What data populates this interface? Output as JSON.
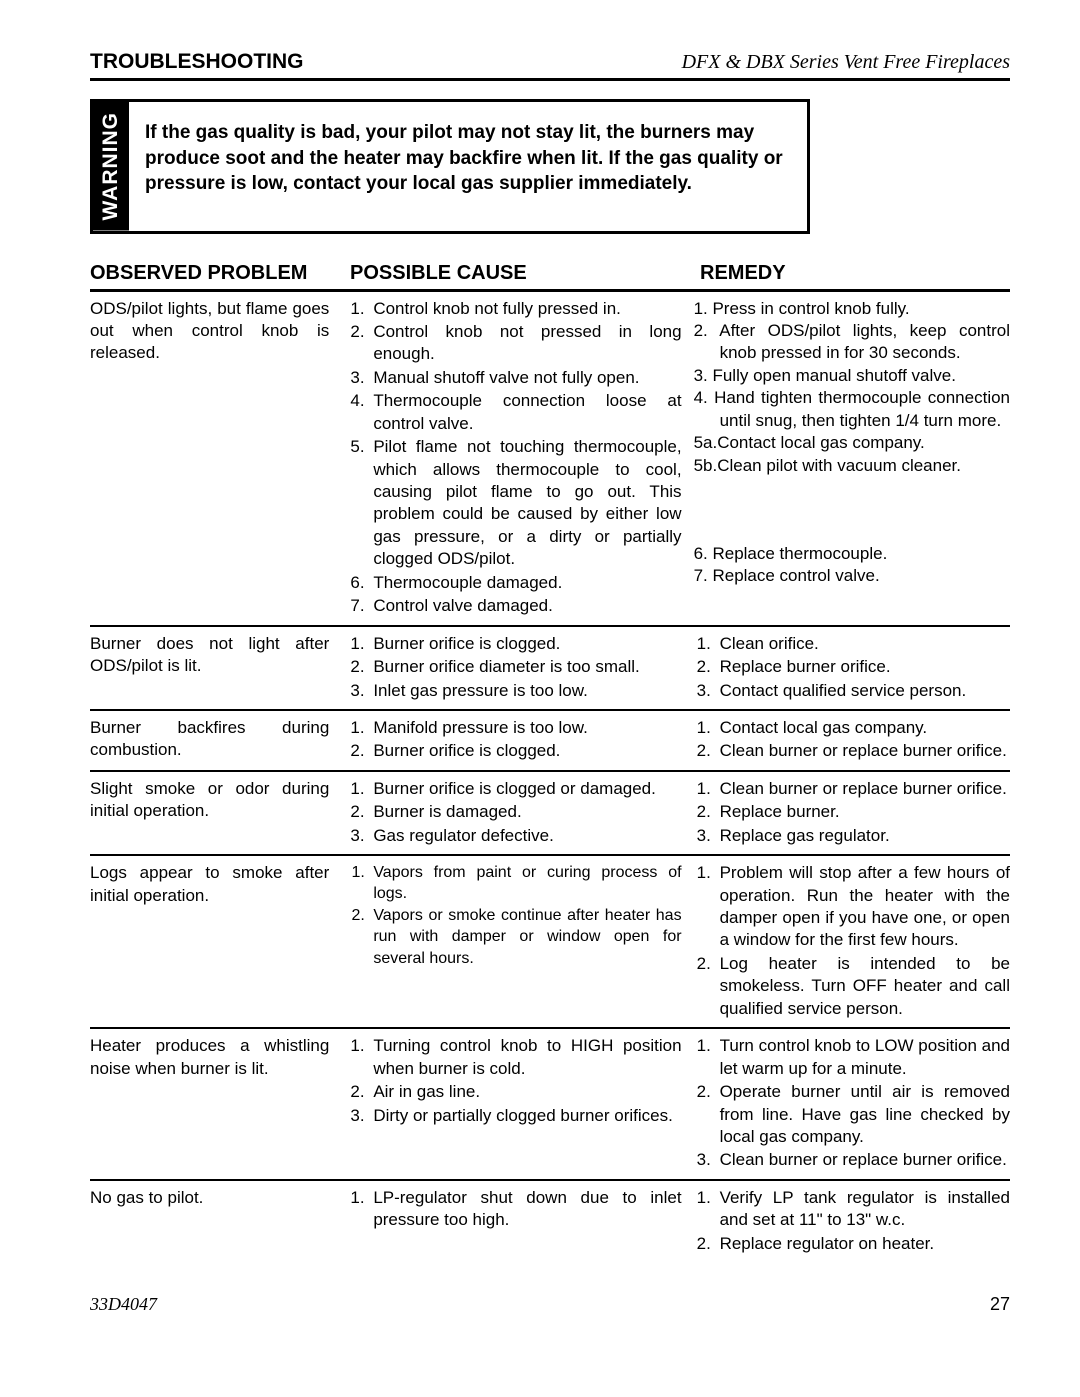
{
  "header": {
    "section": "TROUBLESHOOTING",
    "series": "DFX & DBX Series Vent Free Fireplaces"
  },
  "warning": {
    "label": "WARNING",
    "text": "If the gas quality is bad, your pilot may not stay lit, the burners may produce soot and the heater may backfire when lit. If the gas quality or pressure is low, contact your local gas supplier immediately."
  },
  "columns": {
    "c1": "OBSERVED PROBLEM",
    "c2": "POSSIBLE CAUSE",
    "c3": "REMEDY"
  },
  "rows": [
    {
      "problem": "ODS/pilot lights, but flame goes out when control knob is released.",
      "causes": [
        "Control knob not fully pressed in.",
        "Control knob not pressed in long enough.",
        "Manual shutoff valve not fully open.",
        "Thermocouple connection loose at control valve.",
        "Pilot flame not touching thermocouple, which allows thermocouple to cool, causing pilot flame to go out. This problem could be caused by either low gas pressure, or a dirty or partially clogged ODS/pilot.",
        "Thermocouple damaged.",
        "Control valve damaged."
      ],
      "remedies_custom": [
        "1. Press in control knob fully.",
        "2. After ODS/pilot lights, keep control knob pressed in for 30 seconds.",
        "3. Fully open manual shutoff valve.",
        "4. Hand tighten thermocouple connection until snug, then tighten 1/4 turn more.",
        "5a.Contact local gas company.",
        "5b.Clean pilot with vacuum cleaner.",
        "",
        "",
        "",
        "6. Replace thermocouple.",
        "7. Replace control valve."
      ]
    },
    {
      "problem": "Burner does not light after ODS/pilot is lit.",
      "causes": [
        "Burner orifice is clogged.",
        "Burner orifice diameter is too small.",
        "Inlet gas pressure is too low."
      ],
      "remedies": [
        "Clean orifice.",
        "Replace burner orifice.",
        "Contact qualified service person."
      ]
    },
    {
      "problem": "Burner backfires during combustion.",
      "causes": [
        "Manifold pressure is too low.",
        "Burner orifice is clogged."
      ],
      "remedies": [
        "Contact local gas company.",
        "Clean burner or replace burner orifice."
      ]
    },
    {
      "problem": "Slight smoke or odor during initial operation.",
      "causes": [
        "Burner orifice is clogged or damaged.",
        "Burner is damaged.",
        "Gas regulator defective."
      ],
      "remedies": [
        "Clean burner or replace burner orifice.",
        "Replace burner.",
        "Replace gas regulator."
      ]
    },
    {
      "problem": "Logs appear to smoke after initial operation.",
      "causes": [
        "Vapors from paint or curing process of logs.",
        "Vapors or smoke continue after heater has run with damper or window open for several hours."
      ],
      "remedies": [
        "Problem will stop after a few hours of operation. Run the heater with the damper open if you have one, or open a window for the first few hours.",
        "Log heater is intended to be smokeless. Turn OFF heater and call qualified service person."
      ],
      "cause_small": true
    },
    {
      "problem": "Heater produces a whistling noise when burner is lit.",
      "causes": [
        "Turning control knob to HIGH position when burner is cold.",
        "Air in gas line.",
        "Dirty or partially clogged burner orifices."
      ],
      "remedies": [
        "Turn control knob to LOW position and let warm up for a minute.",
        "Operate burner until air is removed from line. Have gas line checked by local gas company.",
        "Clean burner or replace burner orifice."
      ]
    },
    {
      "problem": "No gas to pilot.",
      "causes": [
        "LP-regulator shut down due to inlet pressure too high."
      ],
      "remedies": [
        "Verify LP tank regulator is installed and set at 11\" to 13\" w.c.",
        "Replace regulator on heater."
      ]
    }
  ],
  "footer": {
    "doc": "33D4047",
    "page": "27"
  }
}
